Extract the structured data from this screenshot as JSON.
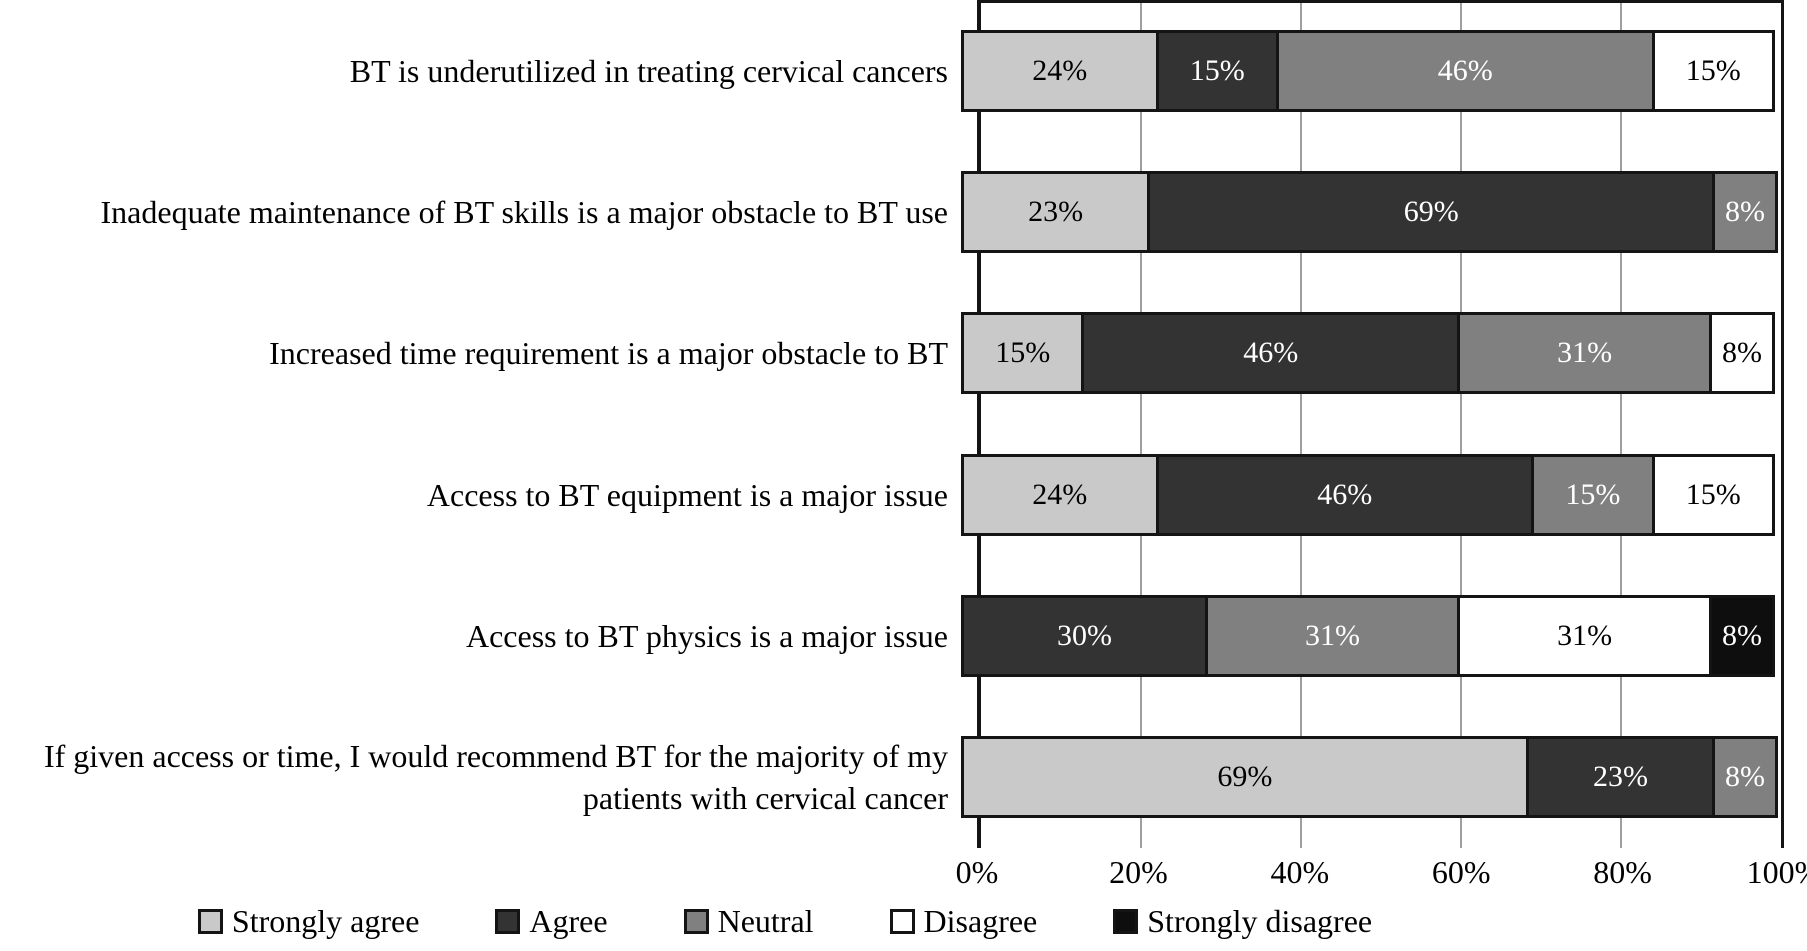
{
  "chart_data": {
    "type": "bar",
    "orientation": "horizontal",
    "stacked": true,
    "title": "",
    "xlabel": "",
    "ylabel": "",
    "xlim": [
      0,
      100
    ],
    "x_ticks": [
      "0%",
      "20%",
      "40%",
      "60%",
      "80%",
      "100%"
    ],
    "grid": true,
    "gridline_color": "#9e9e9e",
    "frame_color": "#141414",
    "legend_position": "bottom",
    "data_label_suffix": "%",
    "categories": [
      "BT is underutilized in treating cervical cancers",
      "Inadequate maintenance of BT skills is a major obstacle to BT use",
      "Increased time requirement is a major obstacle to BT",
      "Access to BT equipment is a major issue",
      "Access to BT physics is a major issue",
      "If given access or time, I would recommend BT for the majority of my patients with cervical cancer"
    ],
    "series": [
      {
        "name": "Strongly agree",
        "color": "#c9c9c9",
        "text_color": "#000000",
        "values": [
          24,
          23,
          15,
          24,
          0,
          69
        ]
      },
      {
        "name": "Agree",
        "color": "#333333",
        "text_color": "#ffffff",
        "values": [
          15,
          69,
          46,
          46,
          30,
          23
        ]
      },
      {
        "name": "Neutral",
        "color": "#808080",
        "text_color": "#ffffff",
        "values": [
          46,
          8,
          31,
          15,
          31,
          8
        ]
      },
      {
        "name": "Disagree",
        "color": "#ffffff",
        "text_color": "#000000",
        "values": [
          15,
          0,
          8,
          15,
          31,
          0
        ]
      },
      {
        "name": "Strongly disagree",
        "color": "#0e0e0e",
        "text_color": "#ffffff",
        "values": [
          0,
          0,
          0,
          0,
          8,
          0
        ]
      }
    ]
  }
}
